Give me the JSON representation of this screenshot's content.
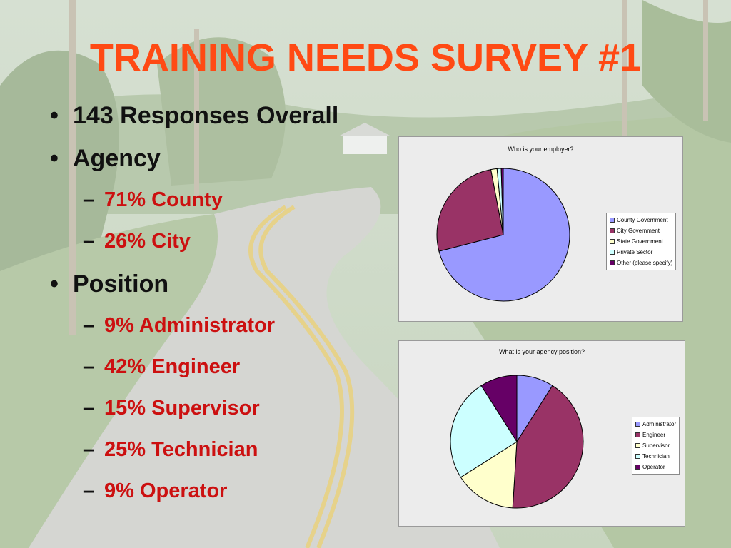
{
  "slide": {
    "title": "TRAINING NEEDS SURVEY #1",
    "bullets": [
      {
        "level": 1,
        "text": "143 Responses Overall"
      },
      {
        "level": 1,
        "text": "Agency"
      },
      {
        "level": 2,
        "text": "71% County"
      },
      {
        "level": 2,
        "text": "26% City"
      },
      {
        "level": 1,
        "text": "Position"
      },
      {
        "level": 2,
        "text": "9% Administrator"
      },
      {
        "level": 2,
        "text": "42% Engineer"
      },
      {
        "level": 2,
        "text": "15% Supervisor"
      },
      {
        "level": 2,
        "text": "25% Technician"
      },
      {
        "level": 2,
        "text": "9% Operator"
      }
    ],
    "bullet_glyph": "•",
    "dash_glyph": "–"
  },
  "chart_data": [
    {
      "type": "pie",
      "title": "Who is your employer?",
      "legend_position": "right",
      "categories": [
        "County Government",
        "City Government",
        "State Government",
        "Private Sector",
        "Other (please specify)"
      ],
      "values": [
        71,
        26,
        1.5,
        1,
        0.5
      ],
      "colors": [
        "#9999ff",
        "#993366",
        "#ffffcc",
        "#ccffff",
        "#660066"
      ]
    },
    {
      "type": "pie",
      "title": "What is your agency position?",
      "legend_position": "right",
      "categories": [
        "Administrator",
        "Engineer",
        "Supervisor",
        "Technician",
        "Operator"
      ],
      "values": [
        9,
        42,
        15,
        25,
        9
      ],
      "colors": [
        "#9999ff",
        "#993366",
        "#ffffcc",
        "#ccffff",
        "#660066"
      ]
    }
  ]
}
